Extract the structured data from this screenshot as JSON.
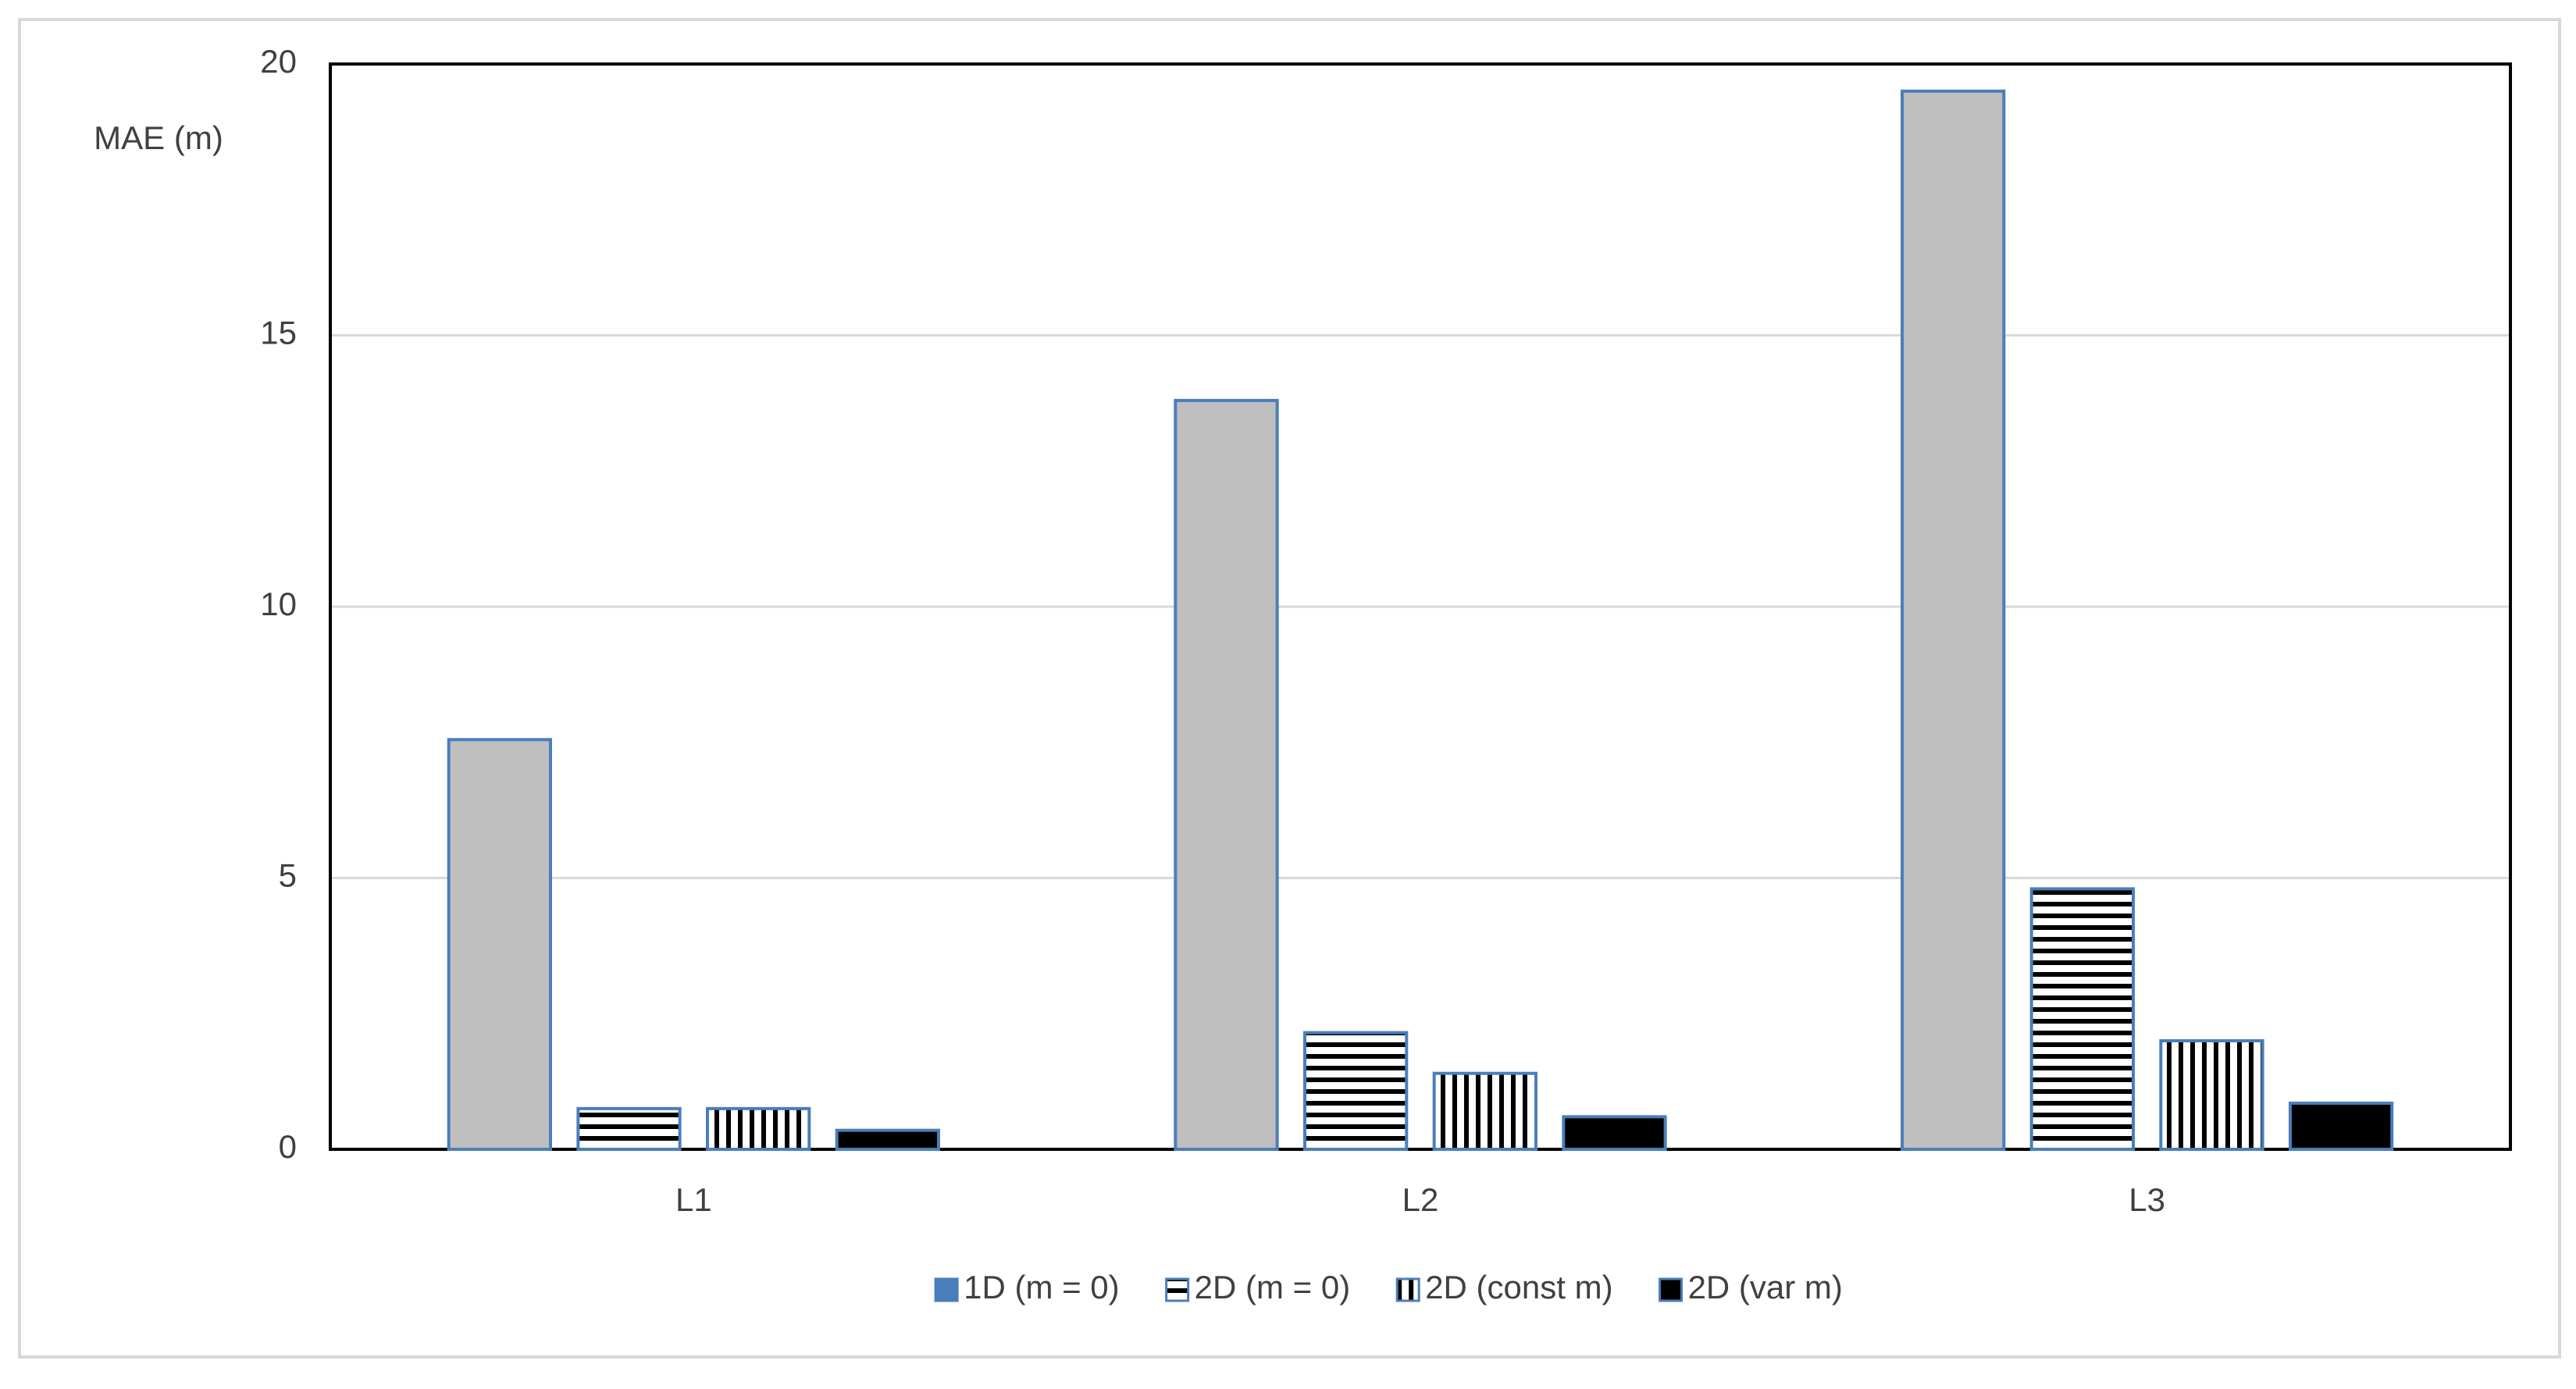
{
  "chart_data": {
    "type": "bar",
    "y_label": "MAE (m)",
    "categories": [
      "L1",
      "L2",
      "L3"
    ],
    "series": [
      {
        "name": "1D (m = 0)",
        "color": "#bfbfbf",
        "edge_color": "#4a7ebb",
        "pattern": "solid",
        "values": [
          7.55,
          13.8,
          19.5
        ]
      },
      {
        "name": "2D (m = 0)",
        "color": "#000000",
        "edge_color": "#4a7ebb",
        "pattern": "horizontal",
        "values": [
          0.75,
          2.15,
          4.8
        ]
      },
      {
        "name": "2D (const m)",
        "color": "#000000",
        "edge_color": "#4a7ebb",
        "pattern": "vertical",
        "values": [
          0.75,
          1.4,
          2.0
        ]
      },
      {
        "name": "2D (var m)",
        "color": "#000000",
        "edge_color": "#4a7ebb",
        "pattern": "solid",
        "values": [
          0.35,
          0.6,
          0.85
        ]
      }
    ],
    "ylim": [
      0,
      20
    ],
    "yticks": [
      0,
      5,
      10,
      15,
      20
    ],
    "grid": true,
    "legend": "bottom"
  }
}
